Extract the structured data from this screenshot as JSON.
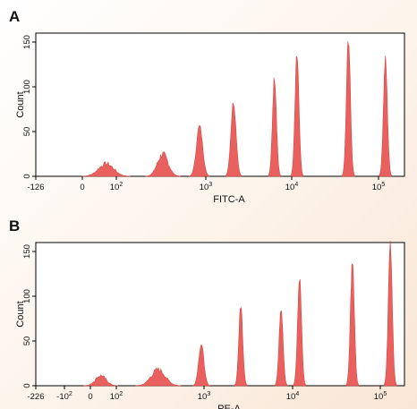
{
  "colors": {
    "histogram": "#e8615f",
    "plot_bg": "#ffffff",
    "axis": "#000000"
  },
  "chart_data": [
    {
      "type": "area",
      "panel_label": "A",
      "title": "",
      "xlabel": "FITC-A",
      "ylabel": "Count",
      "x_scale": "logicle",
      "x_ticks": [
        {
          "value": -126,
          "label": "-126"
        },
        {
          "value": 0,
          "label": "0"
        },
        {
          "value": 100,
          "base": "10",
          "exp": "2"
        },
        {
          "value": 1000,
          "base": "10",
          "exp": "3"
        },
        {
          "value": 10000,
          "base": "10",
          "exp": "4"
        },
        {
          "value": 100000,
          "base": "10",
          "exp": "5"
        }
      ],
      "ylim": [
        0,
        160
      ],
      "y_ticks": [
        {
          "value": 0,
          "label": "0"
        },
        {
          "value": 50,
          "label": "50"
        },
        {
          "value": 100,
          "label": "100"
        },
        {
          "value": 150,
          "label": "150"
        }
      ],
      "grid": false,
      "peaks": [
        {
          "center": 70,
          "height": 15,
          "sigma_decades": 0.12,
          "kind": "broad"
        },
        {
          "center": 330,
          "height": 26,
          "sigma_decades": 0.06,
          "kind": "broad"
        },
        {
          "center": 850,
          "height": 57,
          "sigma_decades": 0.035
        },
        {
          "center": 2100,
          "height": 85,
          "sigma_decades": 0.03
        },
        {
          "center": 6300,
          "height": 113,
          "sigma_decades": 0.02
        },
        {
          "center": 11500,
          "height": 137,
          "sigma_decades": 0.018
        },
        {
          "center": 45000,
          "height": 157,
          "sigma_decades": 0.016
        },
        {
          "center": 120000,
          "height": 132,
          "sigma_decades": 0.015
        }
      ]
    },
    {
      "type": "area",
      "panel_label": "B",
      "title": "",
      "xlabel": "PE-A",
      "ylabel": "Count",
      "x_scale": "logicle",
      "x_ticks": [
        {
          "value": -226,
          "label": "-226"
        },
        {
          "value": -100,
          "neg": true,
          "base": "10",
          "exp": "2"
        },
        {
          "value": 0,
          "label": "0"
        },
        {
          "value": 100,
          "base": "10",
          "exp": "2"
        },
        {
          "value": 1000,
          "base": "10",
          "exp": "3"
        },
        {
          "value": 10000,
          "base": "10",
          "exp": "4"
        },
        {
          "value": 100000,
          "base": "10",
          "exp": "5"
        }
      ],
      "ylim": [
        0,
        160
      ],
      "y_ticks": [
        {
          "value": 0,
          "label": "0"
        },
        {
          "value": 50,
          "label": "50"
        },
        {
          "value": 100,
          "label": "100"
        },
        {
          "value": 150,
          "label": "150"
        }
      ],
      "grid": false,
      "peaks": [
        {
          "center": 40,
          "height": 12,
          "sigma_decades": 0.18,
          "kind": "broad"
        },
        {
          "center": 300,
          "height": 19,
          "sigma_decades": 0.08,
          "kind": "broad"
        },
        {
          "center": 930,
          "height": 47,
          "sigma_decades": 0.03
        },
        {
          "center": 2600,
          "height": 91,
          "sigma_decades": 0.022
        },
        {
          "center": 7400,
          "height": 89,
          "sigma_decades": 0.02
        },
        {
          "center": 12000,
          "height": 123,
          "sigma_decades": 0.018
        },
        {
          "center": 48000,
          "height": 140,
          "sigma_decades": 0.016
        },
        {
          "center": 130000,
          "height": 163,
          "sigma_decades": 0.014
        }
      ]
    }
  ]
}
